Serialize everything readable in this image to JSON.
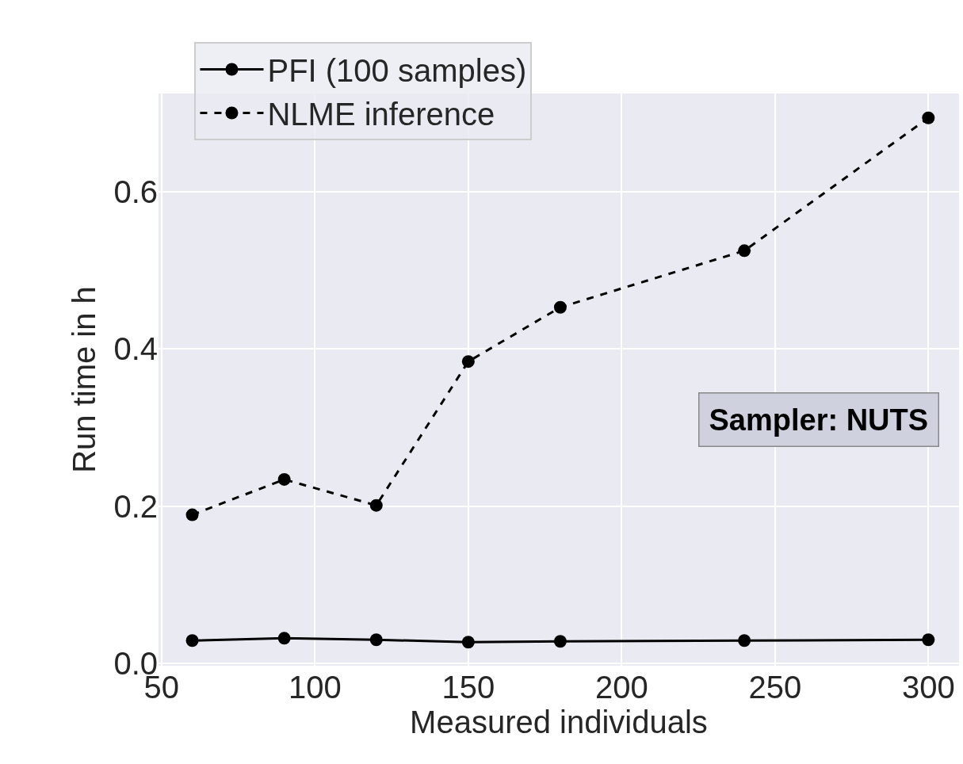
{
  "chart_data": {
    "type": "line",
    "xlabel": "Measured individuals",
    "ylabel": "Run time in h",
    "x": [
      60,
      90,
      120,
      150,
      180,
      240,
      300
    ],
    "series": [
      {
        "name": "PFI (100 samples)",
        "color": "#000000",
        "line_style": "solid",
        "values": [
          0.029,
          0.032,
          0.03,
          0.027,
          0.028,
          0.029,
          0.03
        ]
      },
      {
        "name": "NLME inference",
        "color": "#000000",
        "line_style": "dashed",
        "values": [
          0.189,
          0.234,
          0.201,
          0.384,
          0.453,
          0.525,
          0.694
        ]
      }
    ],
    "xlim": [
      49,
      310
    ],
    "xticks": [
      50,
      100,
      150,
      200,
      250,
      300
    ],
    "ylim": [
      -0.003,
      0.725
    ],
    "yticks": [
      {
        "value": 0,
        "label": "0.0"
      },
      {
        "value": 0.2,
        "label": "0.2"
      },
      {
        "value": 0.4,
        "label": "0.4"
      },
      {
        "value": 0.6,
        "label": "0.6"
      }
    ],
    "grid": true,
    "legend": "top left",
    "marker": "circle",
    "annotations": [
      "Sampler: NUTS"
    ]
  }
}
